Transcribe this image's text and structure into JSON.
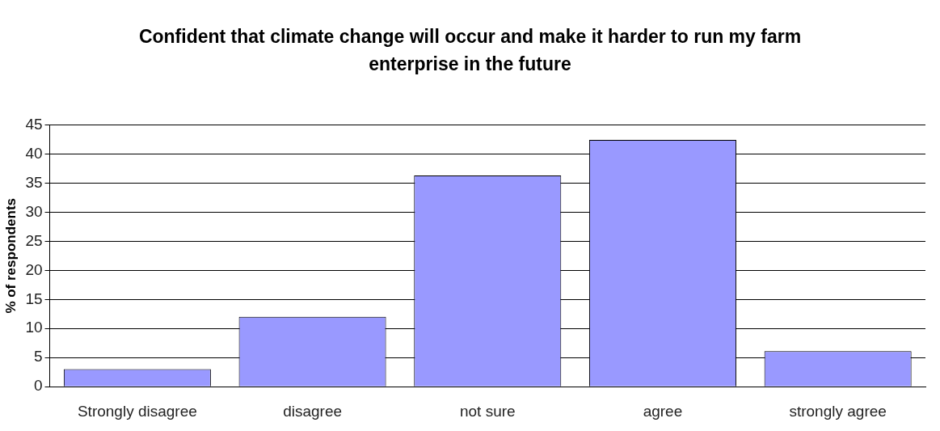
{
  "chart_data": {
    "type": "bar",
    "title": "Confident that climate change will occur and make it harder to run my farm enterprise in the future",
    "ylabel": "% of respondents",
    "categories": [
      "Strongly disagree",
      "disagree",
      "not sure",
      "agree",
      "strongly agree"
    ],
    "values": [
      3,
      12,
      36.3,
      42.4,
      6.1
    ],
    "color": "#9999ff",
    "ylim": [
      0,
      45
    ],
    "yticks": [
      0,
      5,
      10,
      15,
      20,
      25,
      30,
      35,
      40,
      45
    ],
    "grid": "y",
    "legend": false
  }
}
